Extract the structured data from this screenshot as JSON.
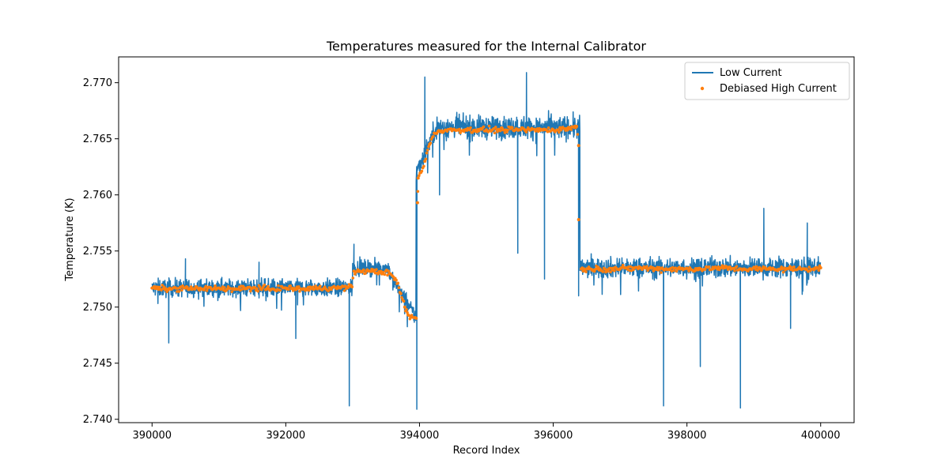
{
  "chart_data": {
    "type": "line",
    "title": "Temperatures measured for the Internal Calibrator",
    "xlabel": "Record Index",
    "ylabel": "Temperature (K)",
    "xlim": [
      389500,
      400500
    ],
    "ylim": [
      2.7397,
      2.7723
    ],
    "xticks": [
      390000,
      392000,
      394000,
      396000,
      398000,
      400000
    ],
    "xtick_labels": [
      "390000",
      "392000",
      "394000",
      "396000",
      "398000",
      "400000"
    ],
    "yticks": [
      2.74,
      2.745,
      2.75,
      2.755,
      2.76,
      2.765,
      2.77
    ],
    "ytick_labels": [
      "2.740",
      "2.745",
      "2.750",
      "2.755",
      "2.760",
      "2.765",
      "2.770"
    ],
    "grid": false,
    "legend_position": "top-right",
    "series": [
      {
        "name": "Low Current",
        "style": "line",
        "color": "#1f77b4",
        "segments": [
          {
            "x_start": 390000,
            "x_end": 393000,
            "mean": 2.7517,
            "noise": 0.0007
          },
          {
            "x_start": 393000,
            "x_end": 393550,
            "mean": 2.7535,
            "noise": 0.0006
          },
          {
            "x_start": 393550,
            "x_end": 393950,
            "mean_start": 2.753,
            "mean_end": 2.749,
            "noise": 0.0007
          },
          {
            "x_start": 393950,
            "x_end": 394250,
            "mean_start": 2.762,
            "mean_end": 2.766,
            "noise": 0.0008
          },
          {
            "x_start": 394250,
            "x_end": 396400,
            "mean": 2.766,
            "noise": 0.0009
          },
          {
            "x_start": 396400,
            "x_end": 400000,
            "mean": 2.7535,
            "noise": 0.0008
          }
        ],
        "spikes": [
          {
            "x": 390250,
            "y": 2.7468
          },
          {
            "x": 390500,
            "y": 2.7543
          },
          {
            "x": 391600,
            "y": 2.754
          },
          {
            "x": 392150,
            "y": 2.7472
          },
          {
            "x": 392950,
            "y": 2.7412
          },
          {
            "x": 393020,
            "y": 2.7556
          },
          {
            "x": 393960,
            "y": 2.7409
          },
          {
            "x": 394080,
            "y": 2.7705
          },
          {
            "x": 394300,
            "y": 2.76
          },
          {
            "x": 395470,
            "y": 2.7548
          },
          {
            "x": 395600,
            "y": 2.7709
          },
          {
            "x": 395870,
            "y": 2.7525
          },
          {
            "x": 396380,
            "y": 2.751
          },
          {
            "x": 397650,
            "y": 2.7412
          },
          {
            "x": 398200,
            "y": 2.7447
          },
          {
            "x": 398800,
            "y": 2.741
          },
          {
            "x": 399150,
            "y": 2.7588
          },
          {
            "x": 399550,
            "y": 2.7481
          },
          {
            "x": 399800,
            "y": 2.7575
          }
        ]
      },
      {
        "name": "Debiased High Current",
        "style": "scatter",
        "color": "#ff7f0e",
        "points": [
          [
            390000,
            2.7517
          ],
          [
            390250,
            2.7516
          ],
          [
            390500,
            2.7517
          ],
          [
            390750,
            2.7516
          ],
          [
            391000,
            2.7517
          ],
          [
            391250,
            2.7516
          ],
          [
            391500,
            2.7517
          ],
          [
            391750,
            2.7516
          ],
          [
            392000,
            2.7517
          ],
          [
            392250,
            2.7516
          ],
          [
            392500,
            2.7517
          ],
          [
            392750,
            2.7517
          ],
          [
            392990,
            2.7518
          ],
          [
            393020,
            2.7532
          ],
          [
            393150,
            2.7532
          ],
          [
            393300,
            2.7532
          ],
          [
            393450,
            2.7531
          ],
          [
            393550,
            2.753
          ],
          [
            393650,
            2.7524
          ],
          [
            393720,
            2.7512
          ],
          [
            393780,
            2.75
          ],
          [
            393830,
            2.7493
          ],
          [
            393870,
            2.7491
          ],
          [
            393950,
            2.749
          ],
          [
            393980,
            2.7615
          ],
          [
            394020,
            2.762
          ],
          [
            394080,
            2.763
          ],
          [
            394150,
            2.7645
          ],
          [
            394220,
            2.7655
          ],
          [
            394300,
            2.7657
          ],
          [
            394500,
            2.7658
          ],
          [
            394750,
            2.7658
          ],
          [
            395000,
            2.7658
          ],
          [
            395250,
            2.7658
          ],
          [
            395500,
            2.7658
          ],
          [
            395750,
            2.7658
          ],
          [
            396000,
            2.7658
          ],
          [
            396200,
            2.7659
          ],
          [
            396350,
            2.7661
          ],
          [
            396380,
            2.7644
          ],
          [
            396380,
            2.7578
          ],
          [
            393970,
            2.7593
          ],
          [
            396420,
            2.7534
          ],
          [
            396700,
            2.7534
          ],
          [
            397000,
            2.7534
          ],
          [
            397300,
            2.7535
          ],
          [
            397600,
            2.7534
          ],
          [
            397900,
            2.7534
          ],
          [
            398200,
            2.7534
          ],
          [
            398500,
            2.7535
          ],
          [
            398800,
            2.7534
          ],
          [
            399100,
            2.7534
          ],
          [
            399400,
            2.7534
          ],
          [
            399700,
            2.7534
          ],
          [
            400000,
            2.7535
          ]
        ]
      }
    ]
  }
}
